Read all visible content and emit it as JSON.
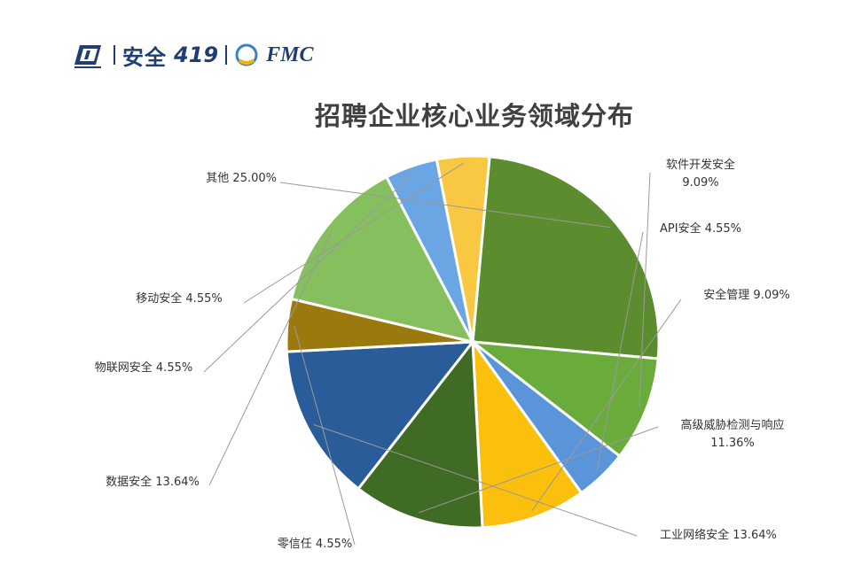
{
  "logo": {
    "brand_text": "安全",
    "brand_num": "419",
    "partner": "FMC"
  },
  "chart_data": {
    "type": "pie",
    "title": "招聘企业核心业务领域分布",
    "slices": [
      {
        "label": "其他",
        "value": 25.0,
        "value_text": "25.00%",
        "color": "#5b8c2e"
      },
      {
        "label": "软件开发安全",
        "value": 9.09,
        "value_text": "9.09%",
        "color": "#6aac3c"
      },
      {
        "label": "API安全",
        "value": 4.55,
        "value_text": "4.55%",
        "color": "#5b95d9"
      },
      {
        "label": "安全管理",
        "value": 9.09,
        "value_text": "9.09%",
        "color": "#fbbf0d"
      },
      {
        "label": "高级威胁检测与响应",
        "value": 11.36,
        "value_text": "11.36%",
        "color": "#3f6b24"
      },
      {
        "label": "工业网络安全",
        "value": 13.64,
        "value_text": "13.64%",
        "color": "#2a5c9a"
      },
      {
        "label": "零信任",
        "value": 4.55,
        "value_text": "4.55%",
        "color": "#9a7a0c"
      },
      {
        "label": "数据安全",
        "value": 13.64,
        "value_text": "13.64%",
        "color": "#86c05e"
      },
      {
        "label": "物联网安全",
        "value": 4.55,
        "value_text": "4.55%",
        "color": "#6aa6e3"
      },
      {
        "label": "移动安全",
        "value": 4.55,
        "value_text": "4.55%",
        "color": "#f9c842"
      }
    ]
  }
}
